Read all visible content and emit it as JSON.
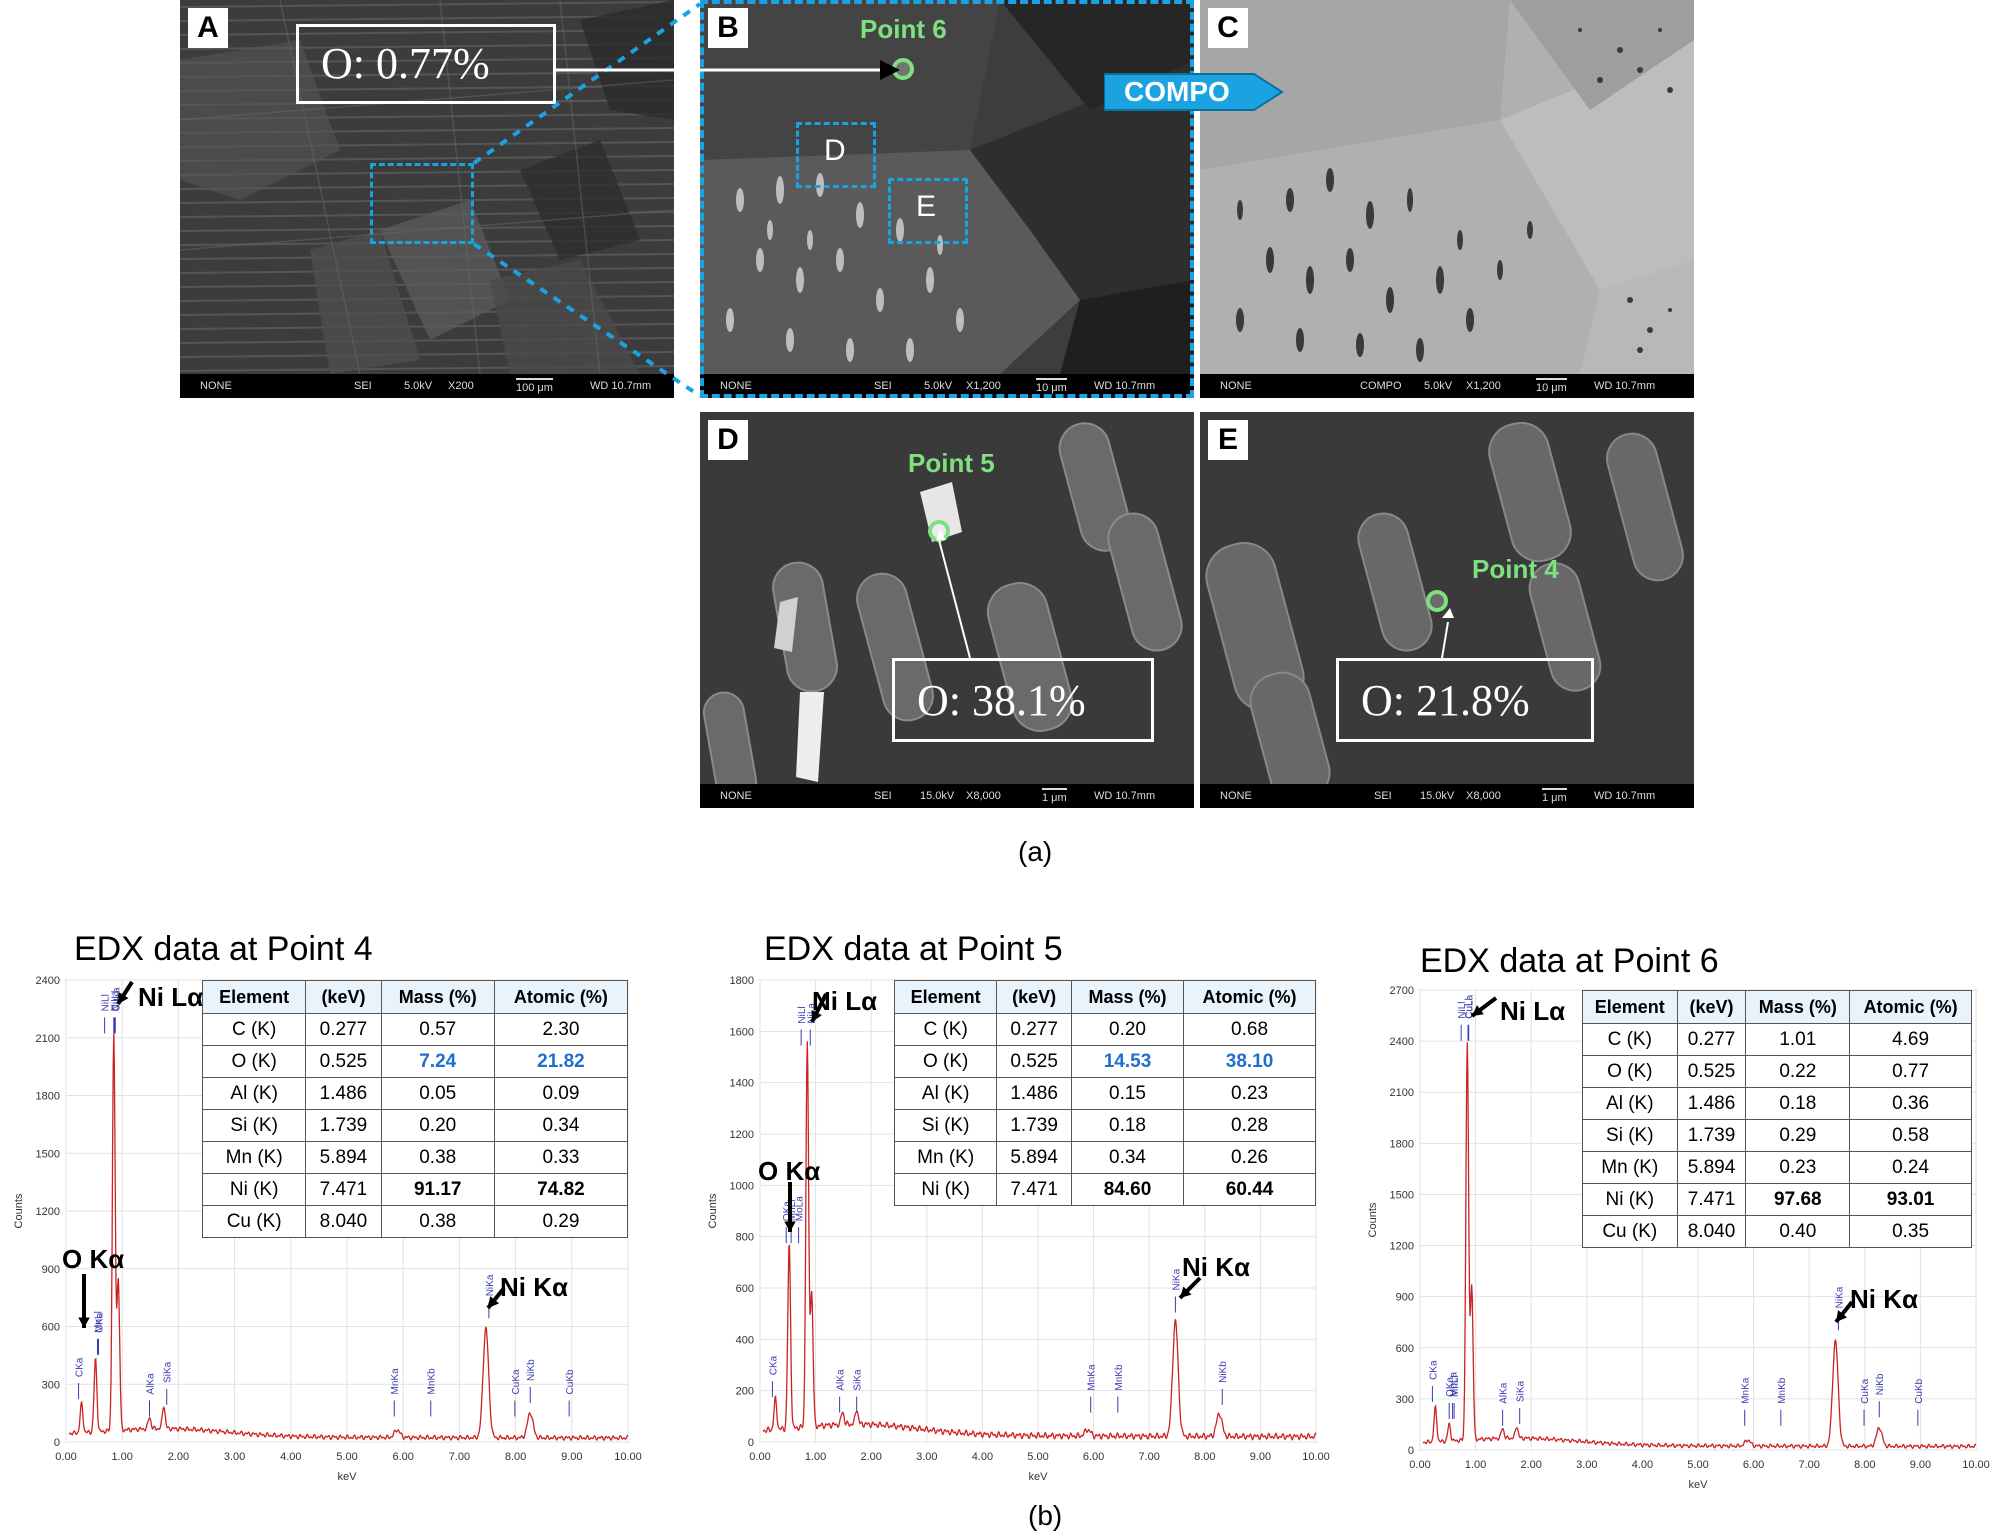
{
  "panels": {
    "A": {
      "label": "A",
      "o_value": "O: 0.77%",
      "bar": [
        "NONE",
        "SEI",
        "5.0kV",
        "X200",
        "100 μm",
        "WD 10.7mm"
      ]
    },
    "B": {
      "label": "B",
      "point": "Point 6",
      "sub_d": "D",
      "sub_e": "E",
      "bar": [
        "NONE",
        "SEI",
        "5.0kV",
        "X1,200",
        "10 μm",
        "WD 10.7mm"
      ]
    },
    "C": {
      "label": "C",
      "mode_arrow": "COMPO",
      "bar": [
        "NONE",
        "COMPO",
        "5.0kV",
        "X1,200",
        "10 μm",
        "WD 10.7mm"
      ]
    },
    "D": {
      "label": "D",
      "point": "Point 5",
      "o_value": "O: 38.1%",
      "bar": [
        "NONE",
        "SEI",
        "15.0kV",
        "X8,000",
        "1 μm",
        "WD 10.7mm"
      ]
    },
    "E": {
      "label": "E",
      "point": "Point 4",
      "o_value": "O: 21.8%",
      "bar": [
        "NONE",
        "SEI",
        "15.0kV",
        "X8,000",
        "1 μm",
        "WD 10.7mm"
      ]
    }
  },
  "captions": {
    "a": "(a)",
    "b": "(b)"
  },
  "table_headers": [
    "Element",
    "(keV)",
    "Mass (%)",
    "Atomic (%)"
  ],
  "edx": [
    {
      "title": "EDX data at Point 4",
      "ylabel": "Counts",
      "xlabel": "keV",
      "yticks": [
        "0",
        "300",
        "600",
        "900",
        "1200",
        "1500",
        "1800",
        "2100",
        "2400"
      ],
      "xticks": [
        "0.00",
        "1.00",
        "2.00",
        "3.00",
        "4.00",
        "5.00",
        "6.00",
        "7.00",
        "8.00",
        "9.00",
        "10.00"
      ],
      "rows": [
        [
          "C (K)",
          "0.277",
          "0.57",
          "2.30"
        ],
        [
          "O (K)",
          "0.525",
          "7.24",
          "21.82"
        ],
        [
          "Al (K)",
          "1.486",
          "0.05",
          "0.09"
        ],
        [
          "Si (K)",
          "1.739",
          "0.20",
          "0.34"
        ],
        [
          "Mn (K)",
          "5.894",
          "0.38",
          "0.33"
        ],
        [
          "Ni (K)",
          "7.471",
          "91.17",
          "74.82"
        ],
        [
          "Cu (K)",
          "8.040",
          "0.38",
          "0.29"
        ]
      ],
      "peak_labels": {
        "ni_la": "Ni Lα",
        "ni_ka": "Ni Kα",
        "o_ka": "O Kα"
      },
      "line_labels": [
        "CKa",
        "MnLl",
        "OKa",
        "NiLl",
        "NiLa",
        "CuLl",
        "CuLa",
        "AlKa",
        "SiKa",
        "MnKa",
        "MnKb",
        "NiKa",
        "CuKa",
        "NiKb",
        "CuKb"
      ]
    },
    {
      "title": "EDX data at Point 5",
      "ylabel": "Counts",
      "xlabel": "keV",
      "yticks": [
        "0",
        "200",
        "400",
        "600",
        "800",
        "1000",
        "1200",
        "1400",
        "1600",
        "1800"
      ],
      "xticks": [
        "0.00",
        "1.00",
        "2.00",
        "3.00",
        "4.00",
        "5.00",
        "6.00",
        "7.00",
        "8.00",
        "9.00",
        "10.00"
      ],
      "rows": [
        [
          "C (K)",
          "0.277",
          "0.20",
          "0.68"
        ],
        [
          "O (K)",
          "0.525",
          "14.53",
          "38.10"
        ],
        [
          "Al (K)",
          "1.486",
          "0.15",
          "0.23"
        ],
        [
          "Si (K)",
          "1.739",
          "0.18",
          "0.28"
        ],
        [
          "Mn (K)",
          "5.894",
          "0.34",
          "0.26"
        ],
        [
          "Ni (K)",
          "7.471",
          "84.60",
          "60.44"
        ]
      ],
      "peak_labels": {
        "ni_la": "Ni Lα",
        "ni_ka": "Ni Kα",
        "o_ka": "O Kα"
      },
      "line_labels": [
        "CKa",
        "MnLl",
        "MoLa",
        "OKa",
        "NiLl",
        "NiLa",
        "AlKa",
        "SiKa",
        "MnKa",
        "MnKb",
        "NiKa",
        "NiKb"
      ]
    },
    {
      "title": "EDX data at Point 6",
      "ylabel": "Counts",
      "xlabel": "keV",
      "yticks": [
        "0",
        "300",
        "600",
        "900",
        "1200",
        "1500",
        "1800",
        "2100",
        "2400",
        "2700"
      ],
      "xticks": [
        "0.00",
        "1.00",
        "2.00",
        "3.00",
        "4.00",
        "5.00",
        "6.00",
        "7.00",
        "8.00",
        "9.00",
        "10.00"
      ],
      "rows": [
        [
          "C (K)",
          "0.277",
          "1.01",
          "4.69"
        ],
        [
          "O (K)",
          "0.525",
          "0.22",
          "0.77"
        ],
        [
          "Al (K)",
          "1.486",
          "0.18",
          "0.36"
        ],
        [
          "Si (K)",
          "1.739",
          "0.29",
          "0.58"
        ],
        [
          "Mn (K)",
          "5.894",
          "0.23",
          "0.24"
        ],
        [
          "Ni (K)",
          "7.471",
          "97.68",
          "93.01"
        ],
        [
          "Cu (K)",
          "8.040",
          "0.40",
          "0.35"
        ]
      ],
      "peak_labels": {
        "ni_la": "Ni Lα",
        "ni_ka": "Ni Kα"
      },
      "line_labels": [
        "CKa",
        "OKa",
        "MnLl",
        "MoLa",
        "NiLl",
        "CuLl",
        "CuLa",
        "AlKa",
        "SiKa",
        "MnKa",
        "MnKb",
        "NiKa",
        "CuKa",
        "NiKb",
        "CuKb"
      ]
    }
  ],
  "chart_data": [
    {
      "type": "line",
      "title": "EDX data at Point 4",
      "xlabel": "keV",
      "ylabel": "Counts",
      "xlim": [
        0,
        10
      ],
      "ylim": [
        0,
        2400
      ],
      "x": [
        0.277,
        0.525,
        0.85,
        0.93,
        1.486,
        1.739,
        5.894,
        7.471,
        8.26
      ],
      "series": [
        {
          "name": "spectrum",
          "values": [
            150,
            380,
            2050,
            780,
            60,
            120,
            40,
            570,
            130
          ]
        }
      ]
    },
    {
      "type": "line",
      "title": "EDX data at Point 5",
      "xlabel": "keV",
      "ylabel": "Counts",
      "xlim": [
        0,
        10
      ],
      "ylim": [
        0,
        1800
      ],
      "x": [
        0.277,
        0.525,
        0.85,
        0.93,
        1.486,
        1.739,
        5.894,
        7.471,
        8.26
      ],
      "series": [
        {
          "name": "spectrum",
          "values": [
            120,
            720,
            1490,
            520,
            50,
            60,
            25,
            450,
            90
          ]
        }
      ]
    },
    {
      "type": "line",
      "title": "EDX data at Point 6",
      "xlabel": "keV",
      "ylabel": "Counts",
      "xlim": [
        0,
        10
      ],
      "ylim": [
        0,
        2700
      ],
      "x": [
        0.277,
        0.525,
        0.85,
        0.93,
        1.486,
        1.739,
        5.894,
        7.471,
        8.26
      ],
      "series": [
        {
          "name": "spectrum",
          "values": [
            200,
            100,
            2320,
            900,
            60,
            70,
            35,
            620,
            110
          ]
        }
      ]
    }
  ]
}
